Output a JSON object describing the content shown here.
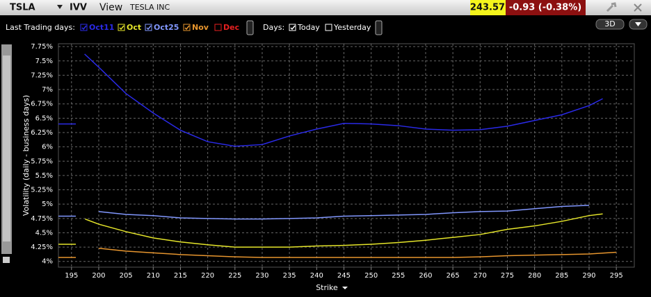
{
  "header": {
    "symbol": "TSLA",
    "tool": "IVV",
    "menu": "View",
    "company": "TESLA INC",
    "last": "243.57",
    "change": "-0.93 (-0.38%)",
    "button_3d": "3D"
  },
  "toolbar": {
    "trading_days_label": "Last Trading days:",
    "days_label": "Days:",
    "days": [
      {
        "name": "Today",
        "checked": true
      },
      {
        "name": "Yesterday",
        "checked": false
      }
    ]
  },
  "chart_data": {
    "type": "line",
    "x_label": "Strike",
    "y_label": "Volatility (daily - business days)",
    "xlim": [
      192.6,
      298.3
    ],
    "ylim": [
      3.9,
      7.8
    ],
    "xticks": [
      195,
      200,
      205,
      210,
      215,
      220,
      225,
      230,
      235,
      240,
      245,
      250,
      255,
      260,
      265,
      270,
      275,
      280,
      285,
      290,
      295
    ],
    "yticks": [
      {
        "value": 4,
        "label": "4%"
      },
      {
        "value": 4.25,
        "label": "4.25%"
      },
      {
        "value": 4.5,
        "label": "4.5%"
      },
      {
        "value": 4.75,
        "label": "4.75%"
      },
      {
        "value": 5,
        "label": "5%"
      },
      {
        "value": 5.25,
        "label": "5.25%"
      },
      {
        "value": 5.5,
        "label": "5.5%"
      },
      {
        "value": 5.75,
        "label": "5.75%"
      },
      {
        "value": 6,
        "label": "6%"
      },
      {
        "value": 6.25,
        "label": "6.25%"
      },
      {
        "value": 6.5,
        "label": "6.5%"
      },
      {
        "value": 6.75,
        "label": "6.75%"
      },
      {
        "value": 7,
        "label": "7%"
      },
      {
        "value": 7.25,
        "label": "7.25%"
      },
      {
        "value": 7.5,
        "label": "7.5%"
      },
      {
        "value": 7.75,
        "label": "7.75%"
      }
    ],
    "grid": true,
    "series": [
      {
        "name": "Oct11",
        "color": "#2a2ae8",
        "checked": true,
        "x": [
          192.6,
          195.8,
          196.5,
          197.4,
          200,
          205,
          210,
          215,
          220,
          225,
          230,
          235,
          240,
          245,
          250,
          255,
          260,
          265,
          270,
          275,
          280,
          285,
          290,
          292.5
        ],
        "values": [
          6.4,
          6.4,
          null,
          7.62,
          7.39,
          6.93,
          6.59,
          6.29,
          6.09,
          6.01,
          6.04,
          6.19,
          6.31,
          6.41,
          6.4,
          6.37,
          6.31,
          6.29,
          6.3,
          6.36,
          6.46,
          6.56,
          6.72,
          6.84
        ]
      },
      {
        "name": "Oct",
        "color": "#e6e62a",
        "checked": true,
        "x": [
          192.6,
          195.8,
          196.5,
          197.5,
          200,
          205,
          210,
          215,
          220,
          225,
          230,
          235,
          240,
          245,
          250,
          255,
          260,
          265,
          270,
          275,
          280,
          285,
          290,
          292.5
        ],
        "values": [
          4.3,
          4.3,
          null,
          4.74,
          4.65,
          4.52,
          4.41,
          4.34,
          4.29,
          4.25,
          4.25,
          4.25,
          4.27,
          4.28,
          4.3,
          4.33,
          4.37,
          4.42,
          4.47,
          4.56,
          4.62,
          4.7,
          4.8,
          4.83
        ]
      },
      {
        "name": "Oct25",
        "color": "#8298ff",
        "checked": true,
        "x": [
          192.6,
          195.8,
          196.5,
          200,
          205,
          210,
          215,
          220,
          225,
          230,
          235,
          240,
          245,
          250,
          255,
          260,
          265,
          270,
          275,
          280,
          285,
          290
        ],
        "values": [
          4.79,
          4.79,
          null,
          4.87,
          4.82,
          4.8,
          4.76,
          4.75,
          4.74,
          4.74,
          4.75,
          4.76,
          4.79,
          4.8,
          4.81,
          4.82,
          4.85,
          4.87,
          4.88,
          4.92,
          4.96,
          4.98
        ]
      },
      {
        "name": "Nov",
        "color": "#e8962e",
        "checked": true,
        "x": [
          192.6,
          195.8,
          196.5,
          200,
          205,
          210,
          215,
          220,
          225,
          230,
          235,
          240,
          245,
          250,
          255,
          260,
          265,
          270,
          275,
          280,
          285,
          290,
          295
        ],
        "values": [
          4.07,
          4.07,
          null,
          4.23,
          4.18,
          4.15,
          4.12,
          4.1,
          4.08,
          4.07,
          4.07,
          4.07,
          4.07,
          4.07,
          4.07,
          4.07,
          4.07,
          4.08,
          4.1,
          4.11,
          4.12,
          4.13,
          4.16
        ]
      },
      {
        "name": "Dec",
        "color": "#e82020",
        "checked": false,
        "x": [],
        "values": []
      }
    ]
  }
}
